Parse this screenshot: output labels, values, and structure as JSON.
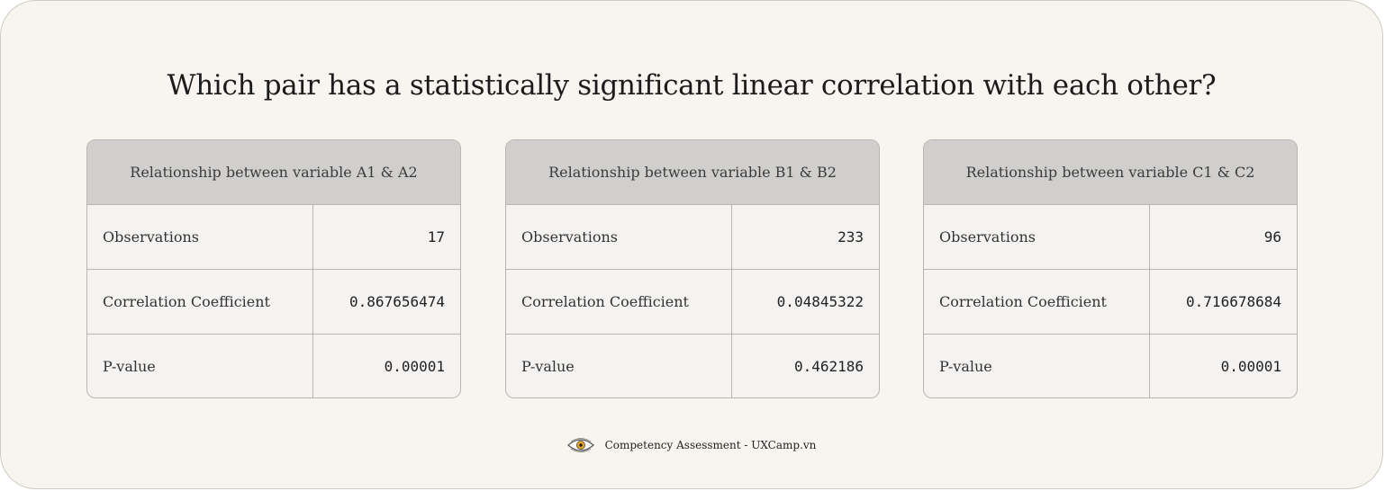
{
  "question": "Which pair has a statistically significant linear correlation with each other?",
  "cards": [
    {
      "title": "Relationship between variable A1 & A2",
      "rows": [
        {
          "label": "Observations",
          "value": "17"
        },
        {
          "label": "Correlation Coefficient",
          "value": "0.867656474"
        },
        {
          "label": "P-value",
          "value": "0.00001"
        }
      ]
    },
    {
      "title": "Relationship between variable B1 & B2",
      "rows": [
        {
          "label": "Observations",
          "value": "233"
        },
        {
          "label": "Correlation Coefficient",
          "value": "0.04845322"
        },
        {
          "label": "P-value",
          "value": "0.462186"
        }
      ]
    },
    {
      "title": "Relationship between variable C1 & C2",
      "rows": [
        {
          "label": "Observations",
          "value": "96"
        },
        {
          "label": "Correlation Coefficient",
          "value": "0.716678684"
        },
        {
          "label": "P-value",
          "value": "0.00001"
        }
      ]
    }
  ],
  "footer": {
    "logo_icon": "eye-logo-icon",
    "text": "Competency Assessment - UXCamp.vn"
  },
  "colors": {
    "background": "#f8f5f0",
    "header_fill": "#d0cfce",
    "cell_fill": "#f4f3f2",
    "border": "#b9b6b2",
    "logo_accent": "#e3a52a"
  }
}
